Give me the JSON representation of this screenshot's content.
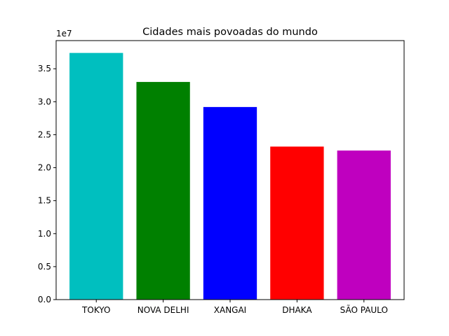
{
  "chart_data": {
    "type": "bar",
    "title": "Cidades mais povoadas do mundo",
    "xlabel": "",
    "ylabel": "",
    "y_offset_label": "1e7",
    "categories": [
      "TOKYO",
      "NOVA DELHI",
      "XANGAI",
      "DHAKA",
      "SÃO PAULO"
    ],
    "values": [
      37400000,
      33000000,
      29200000,
      23200000,
      22600000
    ],
    "colors": [
      "#00bfbf",
      "#008000",
      "#0000ff",
      "#ff0000",
      "#bf00bf"
    ],
    "ylim": [
      0,
      39270000
    ],
    "yticks": [
      0,
      5000000,
      10000000,
      15000000,
      20000000,
      25000000,
      30000000,
      35000000
    ],
    "ytick_labels": [
      "0.0",
      "0.5",
      "1.0",
      "1.5",
      "2.0",
      "2.5",
      "3.0",
      "3.5"
    ],
    "grid": false
  }
}
